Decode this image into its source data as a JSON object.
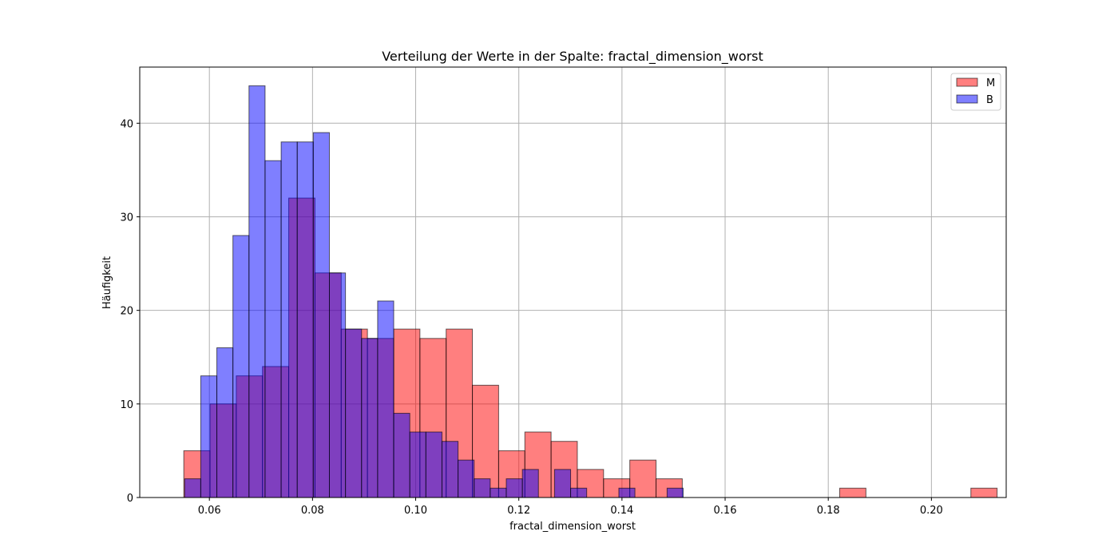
{
  "chart_data": {
    "type": "bar",
    "title": "Verteilung der Werte in der Spalte: fractal_dimension_worst",
    "xlabel": "fractal_dimension_worst",
    "ylabel": "Häufigkeit",
    "xlim": [
      0.0465,
      0.2145
    ],
    "ylim": [
      0,
      46
    ],
    "xticks": [
      0.06,
      0.08,
      0.1,
      0.12,
      0.14,
      0.16,
      0.18,
      0.2
    ],
    "xtick_labels": [
      "0.06",
      "0.08",
      "0.10",
      "0.12",
      "0.14",
      "0.16",
      "0.18",
      "0.20"
    ],
    "yticks": [
      0,
      10,
      20,
      30,
      40
    ],
    "ytick_labels": [
      "0",
      "10",
      "20",
      "30",
      "40"
    ],
    "grid": true,
    "legend_position": "top-right",
    "series": [
      {
        "name": "M",
        "color": "#ff0000",
        "alpha": 0.5,
        "bin_start": 0.05504,
        "bin_width": 0.005087,
        "values": [
          5,
          10,
          13,
          14,
          32,
          24,
          18,
          17,
          18,
          17,
          18,
          12,
          5,
          7,
          6,
          3,
          2,
          4,
          2,
          0,
          0,
          0,
          0,
          0,
          0,
          1,
          0,
          0,
          0,
          0,
          1
        ]
      },
      {
        "name": "B",
        "color": "#0000ff",
        "alpha": 0.5,
        "bin_start": 0.05521,
        "bin_width": 0.003118,
        "values": [
          2,
          13,
          16,
          28,
          44,
          36,
          38,
          38,
          39,
          24,
          18,
          17,
          21,
          9,
          7,
          7,
          6,
          4,
          2,
          1,
          2,
          3,
          0,
          3,
          1,
          0,
          0,
          1,
          0,
          0,
          1
        ]
      }
    ]
  }
}
